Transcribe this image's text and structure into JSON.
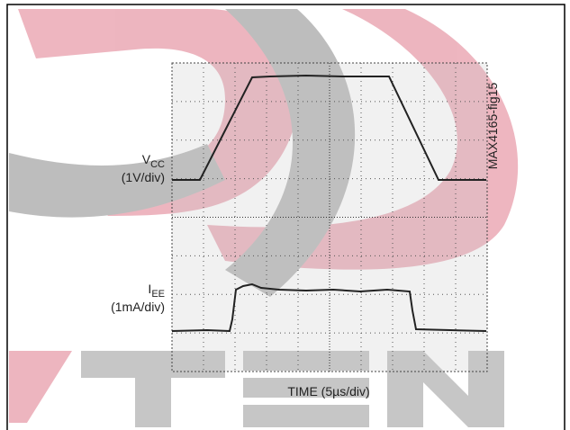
{
  "figure": {
    "vcc_label": {
      "main": "V",
      "sub": "CC",
      "scale": "(1V/div)"
    },
    "iee_label": {
      "main": "I",
      "sub": "EE",
      "scale": "(1mA/div)"
    },
    "x_label": "TIME (5µs/div)",
    "figure_id": "MAX4165-fig15"
  }
}
